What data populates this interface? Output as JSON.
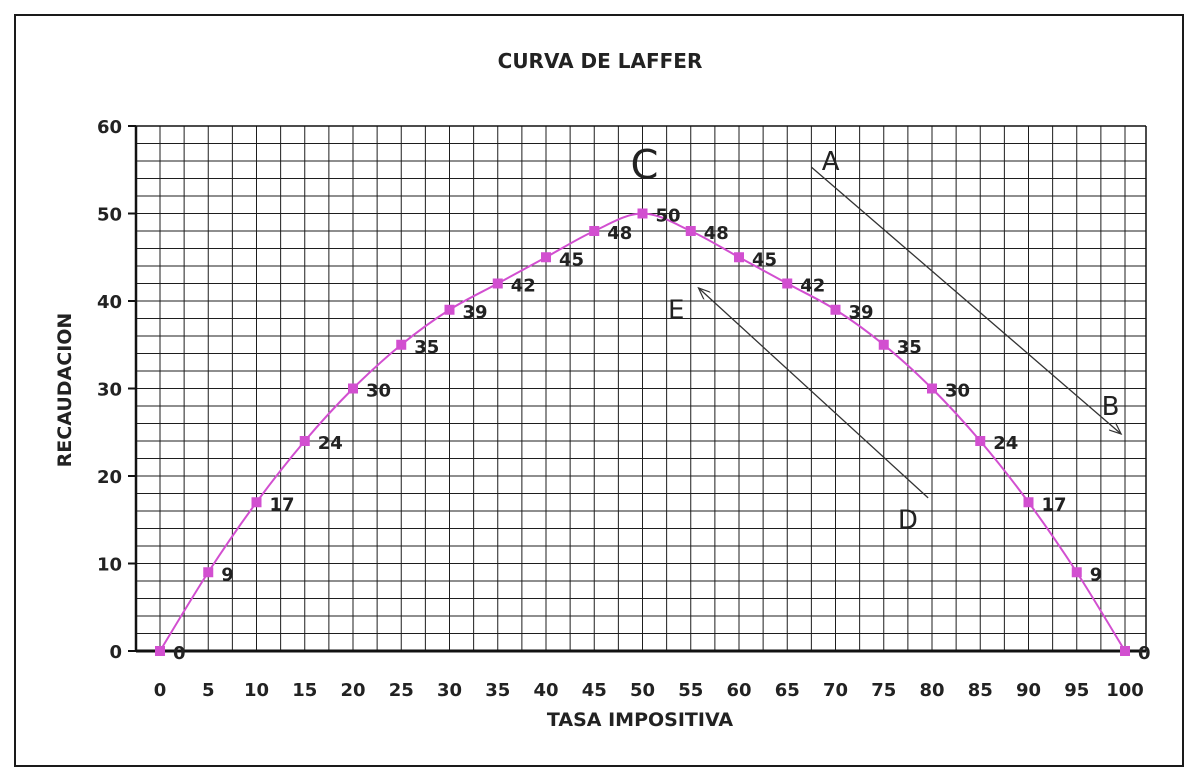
{
  "chart_data": {
    "type": "line",
    "title": "CURVA DE LAFFER",
    "xlabel": "TASA IMPOSITIVA",
    "ylabel": "RECAUDACION",
    "xlim": [
      0,
      100
    ],
    "ylim": [
      0,
      60
    ],
    "x_ticks": [
      0,
      5,
      10,
      15,
      20,
      25,
      30,
      35,
      40,
      45,
      50,
      55,
      60,
      65,
      70,
      75,
      80,
      85,
      90,
      95,
      100
    ],
    "y_ticks": [
      0,
      10,
      20,
      30,
      40,
      50,
      60
    ],
    "grid": true,
    "series": [
      {
        "x": [
          0,
          5,
          10,
          15,
          20,
          25,
          30,
          35,
          40,
          45,
          50,
          55,
          60,
          65,
          70,
          75,
          80,
          85,
          90,
          95,
          100
        ],
        "values": [
          0,
          9,
          17,
          24,
          30,
          35,
          39,
          42,
          45,
          48,
          50,
          48,
          45,
          42,
          39,
          35,
          30,
          24,
          17,
          9,
          0
        ],
        "color": "#d24fd0",
        "data_labels": true
      }
    ],
    "annotations": [
      {
        "text": "C",
        "x": 50.2,
        "y": 54
      },
      {
        "text": "A",
        "x": 69.5,
        "y": 55
      },
      {
        "text": "B",
        "x": 98.5,
        "y": 27
      },
      {
        "text": "E",
        "x": 53.5,
        "y": 38
      },
      {
        "text": "D",
        "x": 77.5,
        "y": 14
      }
    ],
    "arrows": [
      {
        "from": [
          67.5,
          55.3
        ],
        "to": [
          99.6,
          24.8
        ],
        "head": "end"
      },
      {
        "from": [
          79.6,
          17.5
        ],
        "to": [
          55.8,
          41.5
        ],
        "head": "end"
      }
    ]
  }
}
